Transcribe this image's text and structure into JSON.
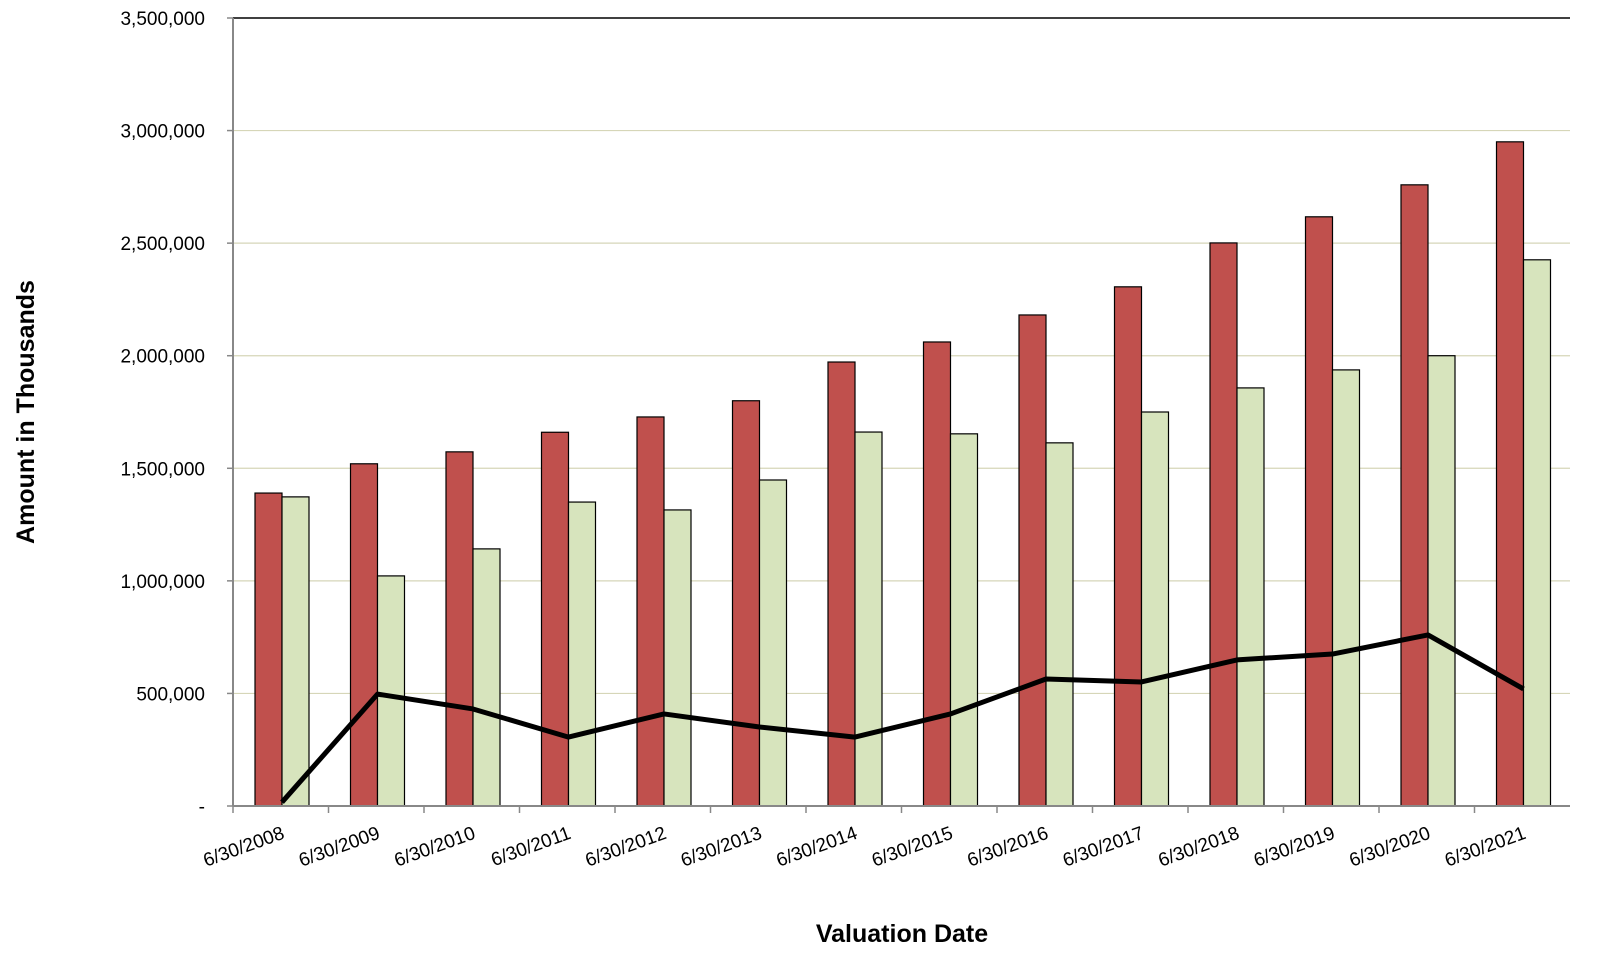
{
  "chart_data": {
    "type": "bar",
    "x_label": "Valuation Date",
    "y_label": "Amount in Thousands",
    "categories": [
      "6/30/2008",
      "6/30/2009",
      "6/30/2010",
      "6/30/2011",
      "6/30/2012",
      "6/30/2013",
      "6/30/2014",
      "6/30/2015",
      "6/30/2016",
      "6/30/2017",
      "6/30/2018",
      "6/30/2019",
      "6/30/2020",
      "6/30/2021"
    ],
    "series": [
      {
        "type": "bar",
        "color": "#c0504d",
        "values": [
          1390000,
          1520000,
          1573000,
          1660000,
          1728000,
          1800000,
          1972000,
          2061000,
          2181000,
          2306000,
          2501000,
          2617000,
          2759000,
          2950000
        ]
      },
      {
        "type": "bar",
        "color": "#d7e4bd",
        "values": [
          1373000,
          1022000,
          1142000,
          1350000,
          1315000,
          1448000,
          1661000,
          1653000,
          1613000,
          1750000,
          1857000,
          1937000,
          2000000,
          2426000
        ]
      },
      {
        "type": "line",
        "color": "#000000",
        "values": [
          17000,
          497000,
          431000,
          306000,
          409000,
          351000,
          306000,
          409000,
          564000,
          551000,
          649000,
          675000,
          760000,
          520000
        ]
      }
    ],
    "ylim": [
      0,
      3500000
    ],
    "yticks": [
      {
        "value": 0,
        "label": "-"
      },
      {
        "value": 500000,
        "label": "500,000"
      },
      {
        "value": 1000000,
        "label": "1,000,000"
      },
      {
        "value": 1500000,
        "label": "1,500,000"
      },
      {
        "value": 2000000,
        "label": "2,000,000"
      },
      {
        "value": 2500000,
        "label": "2,500,000"
      },
      {
        "value": 3000000,
        "label": "3,000,000"
      },
      {
        "value": 3500000,
        "label": "3,500,000"
      }
    ],
    "grid": true
  }
}
